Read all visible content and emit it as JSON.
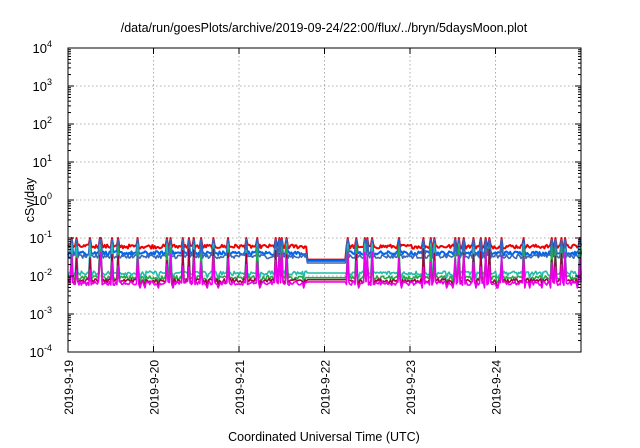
{
  "chart_data": {
    "type": "line",
    "title": "/data/run/goesPlots/archive/2019-09-24/22:00/flux/../bryn/5daysMoon.plot",
    "xlabel": "Coordinated Universal Time (UTC)",
    "ylabel": "cSv/day",
    "yscale": "log",
    "ylim": [
      0.0001,
      10000
    ],
    "yticks": [
      {
        "base": "10",
        "exp": "-4"
      },
      {
        "base": "10",
        "exp": "-3"
      },
      {
        "base": "10",
        "exp": "-2"
      },
      {
        "base": "10",
        "exp": "-1"
      },
      {
        "base": "10",
        "exp": "0"
      },
      {
        "base": "10",
        "exp": "1"
      },
      {
        "base": "10",
        "exp": "2"
      },
      {
        "base": "10",
        "exp": "3"
      },
      {
        "base": "10",
        "exp": "4"
      }
    ],
    "xlim": [
      "2019-9-19",
      "2019-9-25"
    ],
    "xticks": [
      "2019-9-19",
      "2019-9-20",
      "2019-9-21",
      "2019-9-22",
      "2019-9-23",
      "2019-9-24"
    ],
    "grid": true,
    "series": [
      {
        "color": "#ee0000",
        "baseline": 0.06,
        "spike_max": 0.1,
        "gap_value": 0.027
      },
      {
        "color": "#0066ee",
        "baseline": 0.04,
        "spike_max": 0.09,
        "gap_value": 0.025
      },
      {
        "color": "#3a68b8",
        "baseline": 0.033,
        "spike_max": 0.09,
        "gap_value": 0.022
      },
      {
        "color": "#22bbaa",
        "baseline": 0.012,
        "spike_max": 0.07,
        "gap_value": 0.012
      },
      {
        "color": "#22aa44",
        "baseline": 0.009,
        "spike_max": 0.06,
        "gap_value": 0.009
      },
      {
        "color": "#aa0044",
        "baseline": 0.0075,
        "spike_max": 0.06,
        "gap_value": 0.008
      },
      {
        "color": "#ee00ee",
        "baseline": 0.0065,
        "spike_max": 0.06,
        "gap_value": 0.007
      }
    ],
    "flat_segment": {
      "start": "2019-9-21 19:00",
      "end": "2019-9-22 06:00"
    }
  }
}
